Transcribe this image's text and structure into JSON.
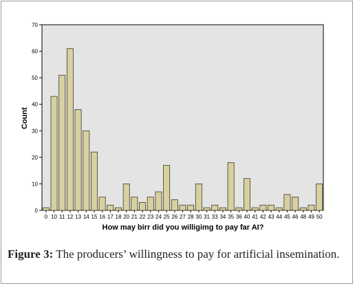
{
  "chart_data": {
    "type": "bar",
    "xlabel": "How may birr did you willigimg to pay far AI?",
    "ylabel": "Count",
    "ylim": [
      0,
      70
    ],
    "yticks": [
      0,
      10,
      20,
      30,
      40,
      50,
      60,
      70
    ],
    "grid": false,
    "categories": [
      "0",
      "10",
      "11",
      "12",
      "13",
      "14",
      "15",
      "16",
      "17",
      "18",
      "20",
      "21",
      "22",
      "23",
      "24",
      "25",
      "26",
      "27",
      "28",
      "30",
      "31",
      "33",
      "34",
      "35",
      "36",
      "40",
      "41",
      "42",
      "43",
      "44",
      "45",
      "46",
      "48",
      "49",
      "50"
    ],
    "values": [
      1,
      43,
      51,
      61,
      38,
      30,
      22,
      5,
      2,
      1,
      10,
      5,
      3,
      5,
      7,
      17,
      4,
      2,
      2,
      10,
      1,
      2,
      1,
      18,
      1,
      12,
      1,
      2,
      2,
      1,
      6,
      5,
      1,
      2,
      10
    ],
    "colors": {
      "bar": "#d8d0a0",
      "bar_stroke": "#3a3a2a",
      "plot_bg": "#e4e4e4"
    }
  },
  "caption": {
    "label": "Figure 3:",
    "text": " The producers’ willingness to pay for artificial insemination."
  }
}
